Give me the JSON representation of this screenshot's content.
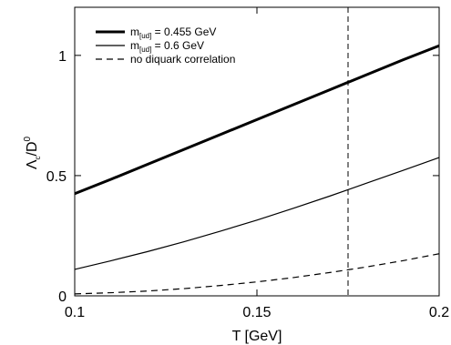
{
  "chart_data": {
    "type": "line",
    "title": "",
    "xlabel": "T [GeV]",
    "ylabel": {
      "base": "Λ",
      "base_sub": "c",
      "sep": "/D",
      "sup": "0"
    },
    "xlim": [
      0.1,
      0.2
    ],
    "ylim": [
      0,
      1.2
    ],
    "x_ticks": [
      0.1,
      0.15,
      0.2
    ],
    "x_tick_labels": [
      "0.1",
      "0.15",
      "0.2"
    ],
    "y_ticks": [
      0,
      0.5,
      1
    ],
    "y_tick_labels": [
      "0",
      "0.5",
      "1"
    ],
    "grid": false,
    "legend_position": "top-left",
    "reference_line": {
      "orientation": "vertical",
      "x": 0.175,
      "style": "dashed"
    },
    "series": [
      {
        "name": {
          "pre": "m",
          "sub": "[ud]",
          "post": " = 0.455 GeV"
        },
        "style": "solid-thick",
        "x": [
          0.1,
          0.11,
          0.12,
          0.13,
          0.14,
          0.15,
          0.16,
          0.17,
          0.18,
          0.19,
          0.2
        ],
        "y": [
          0.425,
          0.485,
          0.547,
          0.609,
          0.671,
          0.733,
          0.795,
          0.857,
          0.919,
          0.981,
          1.04
        ]
      },
      {
        "name": {
          "pre": "m",
          "sub": "[ud]",
          "post": " = 0.6 GeV"
        },
        "style": "solid-thin",
        "x": [
          0.1,
          0.11,
          0.12,
          0.13,
          0.14,
          0.15,
          0.16,
          0.17,
          0.18,
          0.19,
          0.2
        ],
        "y": [
          0.11,
          0.146,
          0.184,
          0.225,
          0.269,
          0.315,
          0.364,
          0.415,
          0.468,
          0.521,
          0.575
        ]
      },
      {
        "name": {
          "pre": "no diquark correlation",
          "sub": "",
          "post": ""
        },
        "style": "dashed",
        "x": [
          0.1,
          0.11,
          0.12,
          0.13,
          0.14,
          0.15,
          0.16,
          0.17,
          0.18,
          0.19,
          0.2
        ],
        "y": [
          0.008,
          0.013,
          0.02,
          0.03,
          0.043,
          0.058,
          0.076,
          0.097,
          0.12,
          0.146,
          0.175
        ]
      }
    ]
  }
}
